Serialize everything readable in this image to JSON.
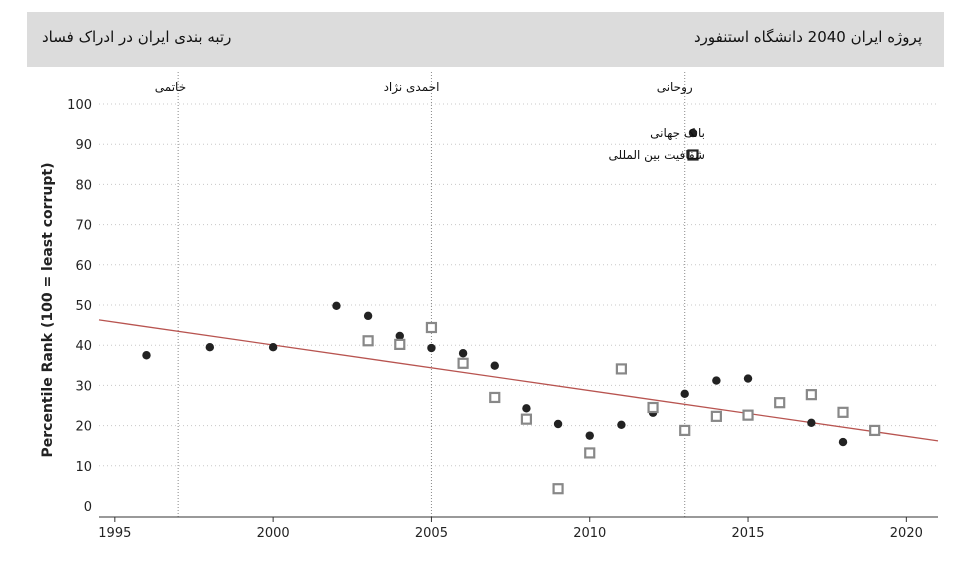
{
  "header": {
    "left_title": "رتبه بندی ایران در ادراک فساد",
    "right_title": "پروژه ایران 2040 دانشگاه استنفورد"
  },
  "chart_data": {
    "type": "scatter",
    "ylabel": "Percentile Rank (100 = least corrupt)",
    "xlim": [
      1994.5,
      2021
    ],
    "ylim": [
      0,
      100
    ],
    "x_ticks": [
      1995,
      2000,
      2005,
      2010,
      2015,
      2020
    ],
    "y_ticks": [
      0,
      10,
      20,
      30,
      40,
      50,
      60,
      70,
      80,
      90,
      100
    ],
    "grid": "horizontal-dotted",
    "legend_position": "top-right",
    "series": [
      {
        "name": "بانک جهانی",
        "marker": "filled-circle",
        "color": "#222222",
        "x": [
          1996,
          1998,
          2000,
          2002,
          2003,
          2004,
          2005,
          2006,
          2007,
          2008,
          2009,
          2010,
          2011,
          2012,
          2013,
          2014,
          2015,
          2016,
          2017,
          2018
        ],
        "y": [
          37.5,
          39.5,
          39.5,
          49.8,
          47.3,
          42.3,
          39.3,
          38,
          34.9,
          24.3,
          20.4,
          17.5,
          20.2,
          23.2,
          27.9,
          31.2,
          31.7,
          25.9,
          20.7,
          15.9
        ]
      },
      {
        "name": "شفافیت بین المللی",
        "marker": "open-square",
        "color": "#888888",
        "x": [
          2003,
          2004,
          2005,
          2006,
          2007,
          2008,
          2009,
          2010,
          2011,
          2012,
          2013,
          2014,
          2015,
          2016,
          2017,
          2018,
          2019
        ],
        "y": [
          41.1,
          40.2,
          44.4,
          35.5,
          27,
          21.6,
          4.3,
          13.2,
          34.1,
          24.5,
          18.8,
          22.3,
          22.6,
          25.7,
          27.7,
          23.3,
          18.8
        ]
      }
    ],
    "trendline": {
      "color": "#b85450",
      "x": [
        1994.5,
        2021
      ],
      "y": [
        46.3,
        16.2
      ]
    },
    "annotations": [
      {
        "x": 1997,
        "label": "خاتمی"
      },
      {
        "x": 2005,
        "label": "احمدی نژاد"
      },
      {
        "x": 2013,
        "label": "روحانی"
      }
    ]
  }
}
